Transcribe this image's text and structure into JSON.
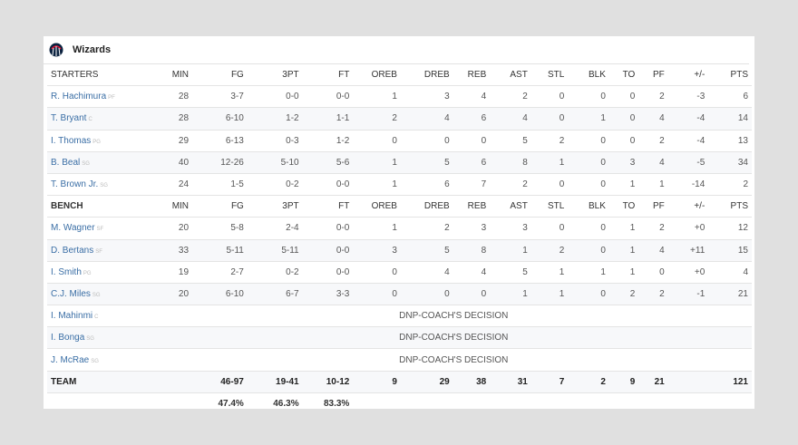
{
  "team": {
    "name": "Wizards",
    "logo_icon": "wizards-logo-icon",
    "colors": {
      "primary": "#0c2340",
      "accent": "#e31837",
      "link": "#3a6ea5"
    }
  },
  "columns": [
    "MIN",
    "FG",
    "3PT",
    "FT",
    "OREB",
    "DREB",
    "REB",
    "AST",
    "STL",
    "BLK",
    "TO",
    "PF",
    "+/-",
    "PTS"
  ],
  "starters": {
    "label": "STARTERS",
    "rows": [
      {
        "name": "R. Hachimura",
        "pos": "PF",
        "stats": [
          "28",
          "3-7",
          "0-0",
          "0-0",
          "1",
          "3",
          "4",
          "2",
          "0",
          "0",
          "0",
          "2",
          "-3",
          "6"
        ]
      },
      {
        "name": "T. Bryant",
        "pos": "C",
        "stats": [
          "28",
          "6-10",
          "1-2",
          "1-1",
          "2",
          "4",
          "6",
          "4",
          "0",
          "1",
          "0",
          "4",
          "-4",
          "14"
        ]
      },
      {
        "name": "I. Thomas",
        "pos": "PG",
        "stats": [
          "29",
          "6-13",
          "0-3",
          "1-2",
          "0",
          "0",
          "0",
          "5",
          "2",
          "0",
          "0",
          "2",
          "-4",
          "13"
        ]
      },
      {
        "name": "B. Beal",
        "pos": "SG",
        "stats": [
          "40",
          "12-26",
          "5-10",
          "5-6",
          "1",
          "5",
          "6",
          "8",
          "1",
          "0",
          "3",
          "4",
          "-5",
          "34"
        ]
      },
      {
        "name": "T. Brown Jr.",
        "pos": "SG",
        "stats": [
          "24",
          "1-5",
          "0-2",
          "0-0",
          "1",
          "6",
          "7",
          "2",
          "0",
          "0",
          "1",
          "1",
          "-14",
          "2"
        ]
      }
    ]
  },
  "bench": {
    "label": "BENCH",
    "rows": [
      {
        "name": "M. Wagner",
        "pos": "SF",
        "stats": [
          "20",
          "5-8",
          "2-4",
          "0-0",
          "1",
          "2",
          "3",
          "3",
          "0",
          "0",
          "1",
          "2",
          "+0",
          "12"
        ]
      },
      {
        "name": "D. Bertans",
        "pos": "SF",
        "stats": [
          "33",
          "5-11",
          "5-11",
          "0-0",
          "3",
          "5",
          "8",
          "1",
          "2",
          "0",
          "1",
          "4",
          "+11",
          "15"
        ]
      },
      {
        "name": "I. Smith",
        "pos": "PG",
        "stats": [
          "19",
          "2-7",
          "0-2",
          "0-0",
          "0",
          "4",
          "4",
          "5",
          "1",
          "1",
          "1",
          "0",
          "+0",
          "4"
        ]
      },
      {
        "name": "C.J. Miles",
        "pos": "SG",
        "stats": [
          "20",
          "6-10",
          "6-7",
          "3-3",
          "0",
          "0",
          "0",
          "1",
          "1",
          "0",
          "2",
          "2",
          "-1",
          "21"
        ]
      }
    ],
    "dnp": [
      {
        "name": "I. Mahinmi",
        "pos": "C",
        "note": "DNP-COACH'S DECISION"
      },
      {
        "name": "I. Bonga",
        "pos": "SG",
        "note": "DNP-COACH'S DECISION"
      },
      {
        "name": "J. McRae",
        "pos": "SG",
        "note": "DNP-COACH'S DECISION"
      }
    ]
  },
  "totals": {
    "label": "TEAM",
    "stats": [
      "",
      "46-97",
      "19-41",
      "10-12",
      "9",
      "29",
      "38",
      "31",
      "7",
      "2",
      "9",
      "21",
      "",
      "121"
    ],
    "pct": [
      "",
      "47.4%",
      "46.3%",
      "83.3%",
      "",
      "",
      "",
      "",
      "",
      "",
      "",
      "",
      "",
      ""
    ]
  }
}
